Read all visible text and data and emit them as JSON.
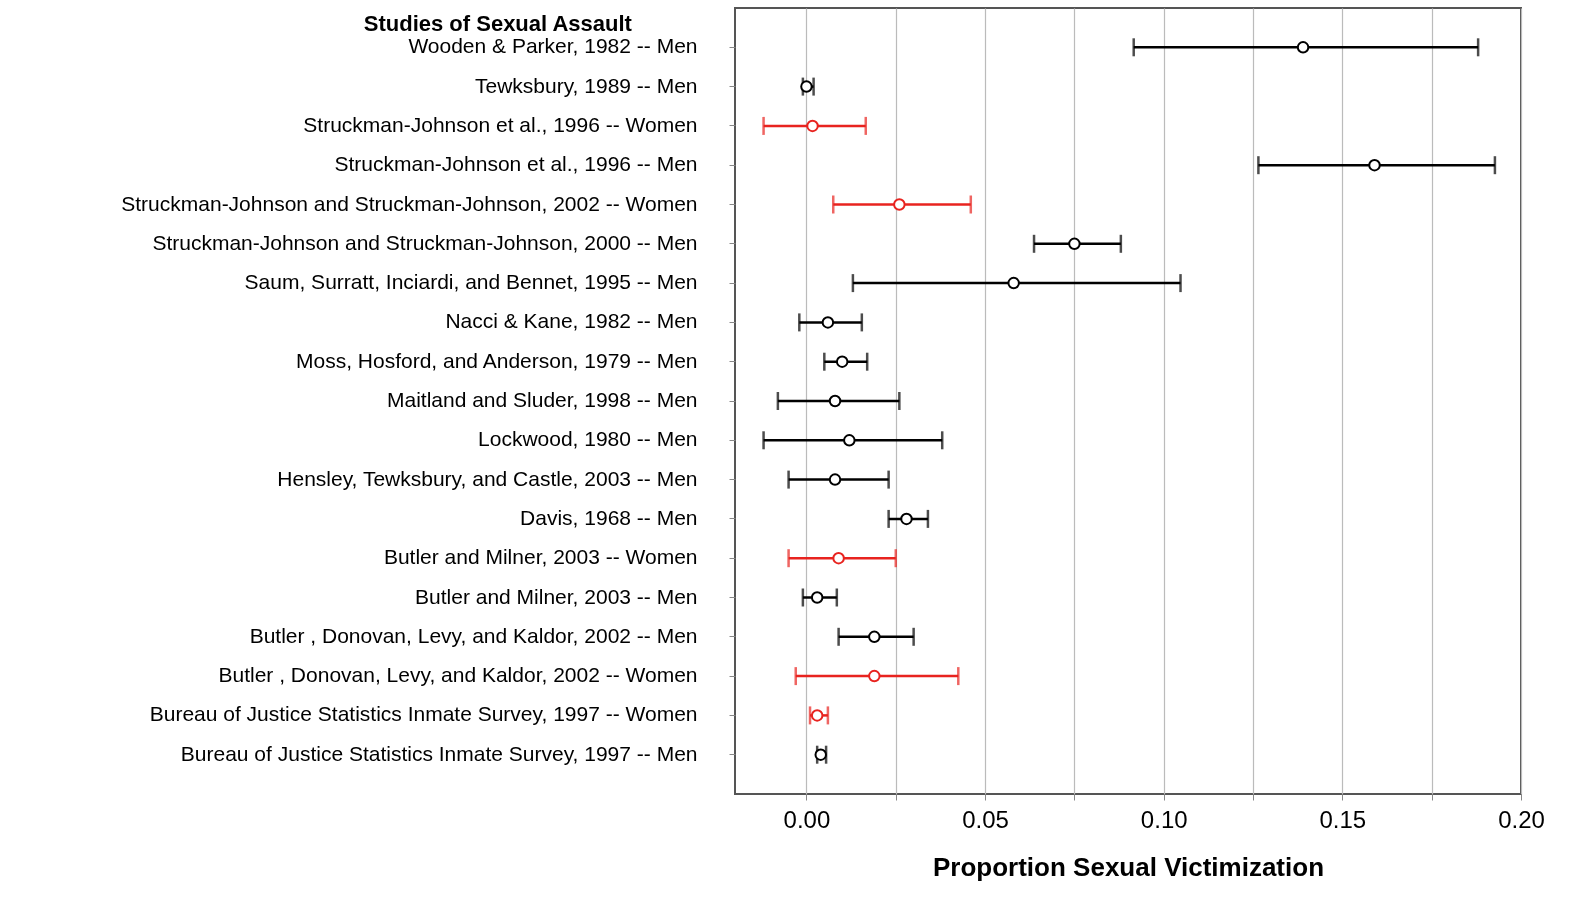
{
  "chart_data": {
    "type": "scatter",
    "orientation": "horizontal",
    "title": "Studies of Sexual Assault",
    "xlabel": "Proportion Sexual Victimization",
    "categories": [
      "Wooden & Parker, 1982 -- Men",
      "Tewksbury, 1989 -- Men",
      "Struckman-Johnson et al., 1996 -- Women",
      "Struckman-Johnson et al., 1996 -- Men",
      "Struckman-Johnson and Struckman-Johnson, 2002 -- Women",
      "Struckman-Johnson and Struckman-Johnson, 2000 -- Men",
      "Saum, Surratt, Inciardi, and Bennet, 1995 -- Men",
      "Nacci & Kane, 1982 -- Men",
      "Moss, Hosford, and Anderson, 1979 -- Men",
      "Maitland and Sluder, 1998 -- Men",
      "Lockwood, 1980 -- Men",
      "Hensley, Tewksbury, and Castle, 2003 -- Men",
      "Davis, 1968 -- Men",
      "Butler and Milner, 2003 -- Women",
      "Butler and Milner, 2003  -- Men",
      "Butler , Donovan, Levy, and Kaldor, 2002 -- Men",
      "Butler , Donovan, Levy, and Kaldor, 2002  -- Women",
      "Bureau of Justice Statistics Inmate Survey, 1997 -- Women",
      "Bureau of Justice Statistics Inmate Survey, 1997 -- Men"
    ],
    "series": [
      {
        "color": "#000000",
        "values": [
          0.139,
          0.0,
          null,
          0.159,
          null,
          0.075,
          0.058,
          0.006,
          0.01,
          0.008,
          0.012,
          0.008,
          0.028,
          null,
          0.003,
          0.019,
          null,
          null,
          0.004
        ],
        "errors": [
          [
            0.0916,
            0.188
          ],
          [
            -0.001,
            0.002
          ],
          null,
          [
            0.1265,
            0.1927
          ],
          null,
          [
            0.0637,
            0.088
          ],
          [
            0.013,
            0.1047
          ],
          [
            -0.002,
            0.0155
          ],
          [
            0.005,
            0.017
          ],
          [
            -0.008,
            0.026
          ],
          [
            -0.012,
            0.038
          ],
          [
            -0.005,
            0.023
          ],
          [
            0.023,
            0.034
          ],
          null,
          [
            -0.001,
            0.0085
          ],
          [
            0.009,
            0.03
          ],
          null,
          null,
          [
            0.003,
            0.0055
          ]
        ]
      },
      {
        "color": "#e8231f",
        "values": [
          null,
          null,
          0.0017,
          null,
          0.026,
          null,
          null,
          null,
          null,
          null,
          null,
          null,
          null,
          0.009,
          null,
          null,
          0.019,
          0.003,
          null
        ],
        "errors": [
          null,
          null,
          [
            -0.012,
            0.0166
          ],
          null,
          [
            0.0075,
            0.046
          ],
          null,
          null,
          null,
          null,
          null,
          null,
          null,
          null,
          [
            -0.005,
            0.025
          ],
          null,
          null,
          [
            -0.003,
            0.0425
          ],
          [
            0.001,
            0.006
          ],
          null
        ]
      }
    ],
    "xlim": [
      -0.02,
      0.2
    ],
    "xticks": [
      {
        "value": 0,
        "label": "0.00"
      },
      {
        "value": 0.025,
        "label": null
      },
      {
        "value": 0.05,
        "label": "0.05"
      },
      {
        "value": 0.075,
        "label": null
      },
      {
        "value": 0.1,
        "label": "0.10"
      },
      {
        "value": 0.125,
        "label": null
      },
      {
        "value": 0.15,
        "label": "0.15"
      },
      {
        "value": 0.175,
        "label": null
      },
      {
        "value": 0.2,
        "label": "0.20"
      }
    ],
    "grid": "x",
    "marker": "circle"
  }
}
